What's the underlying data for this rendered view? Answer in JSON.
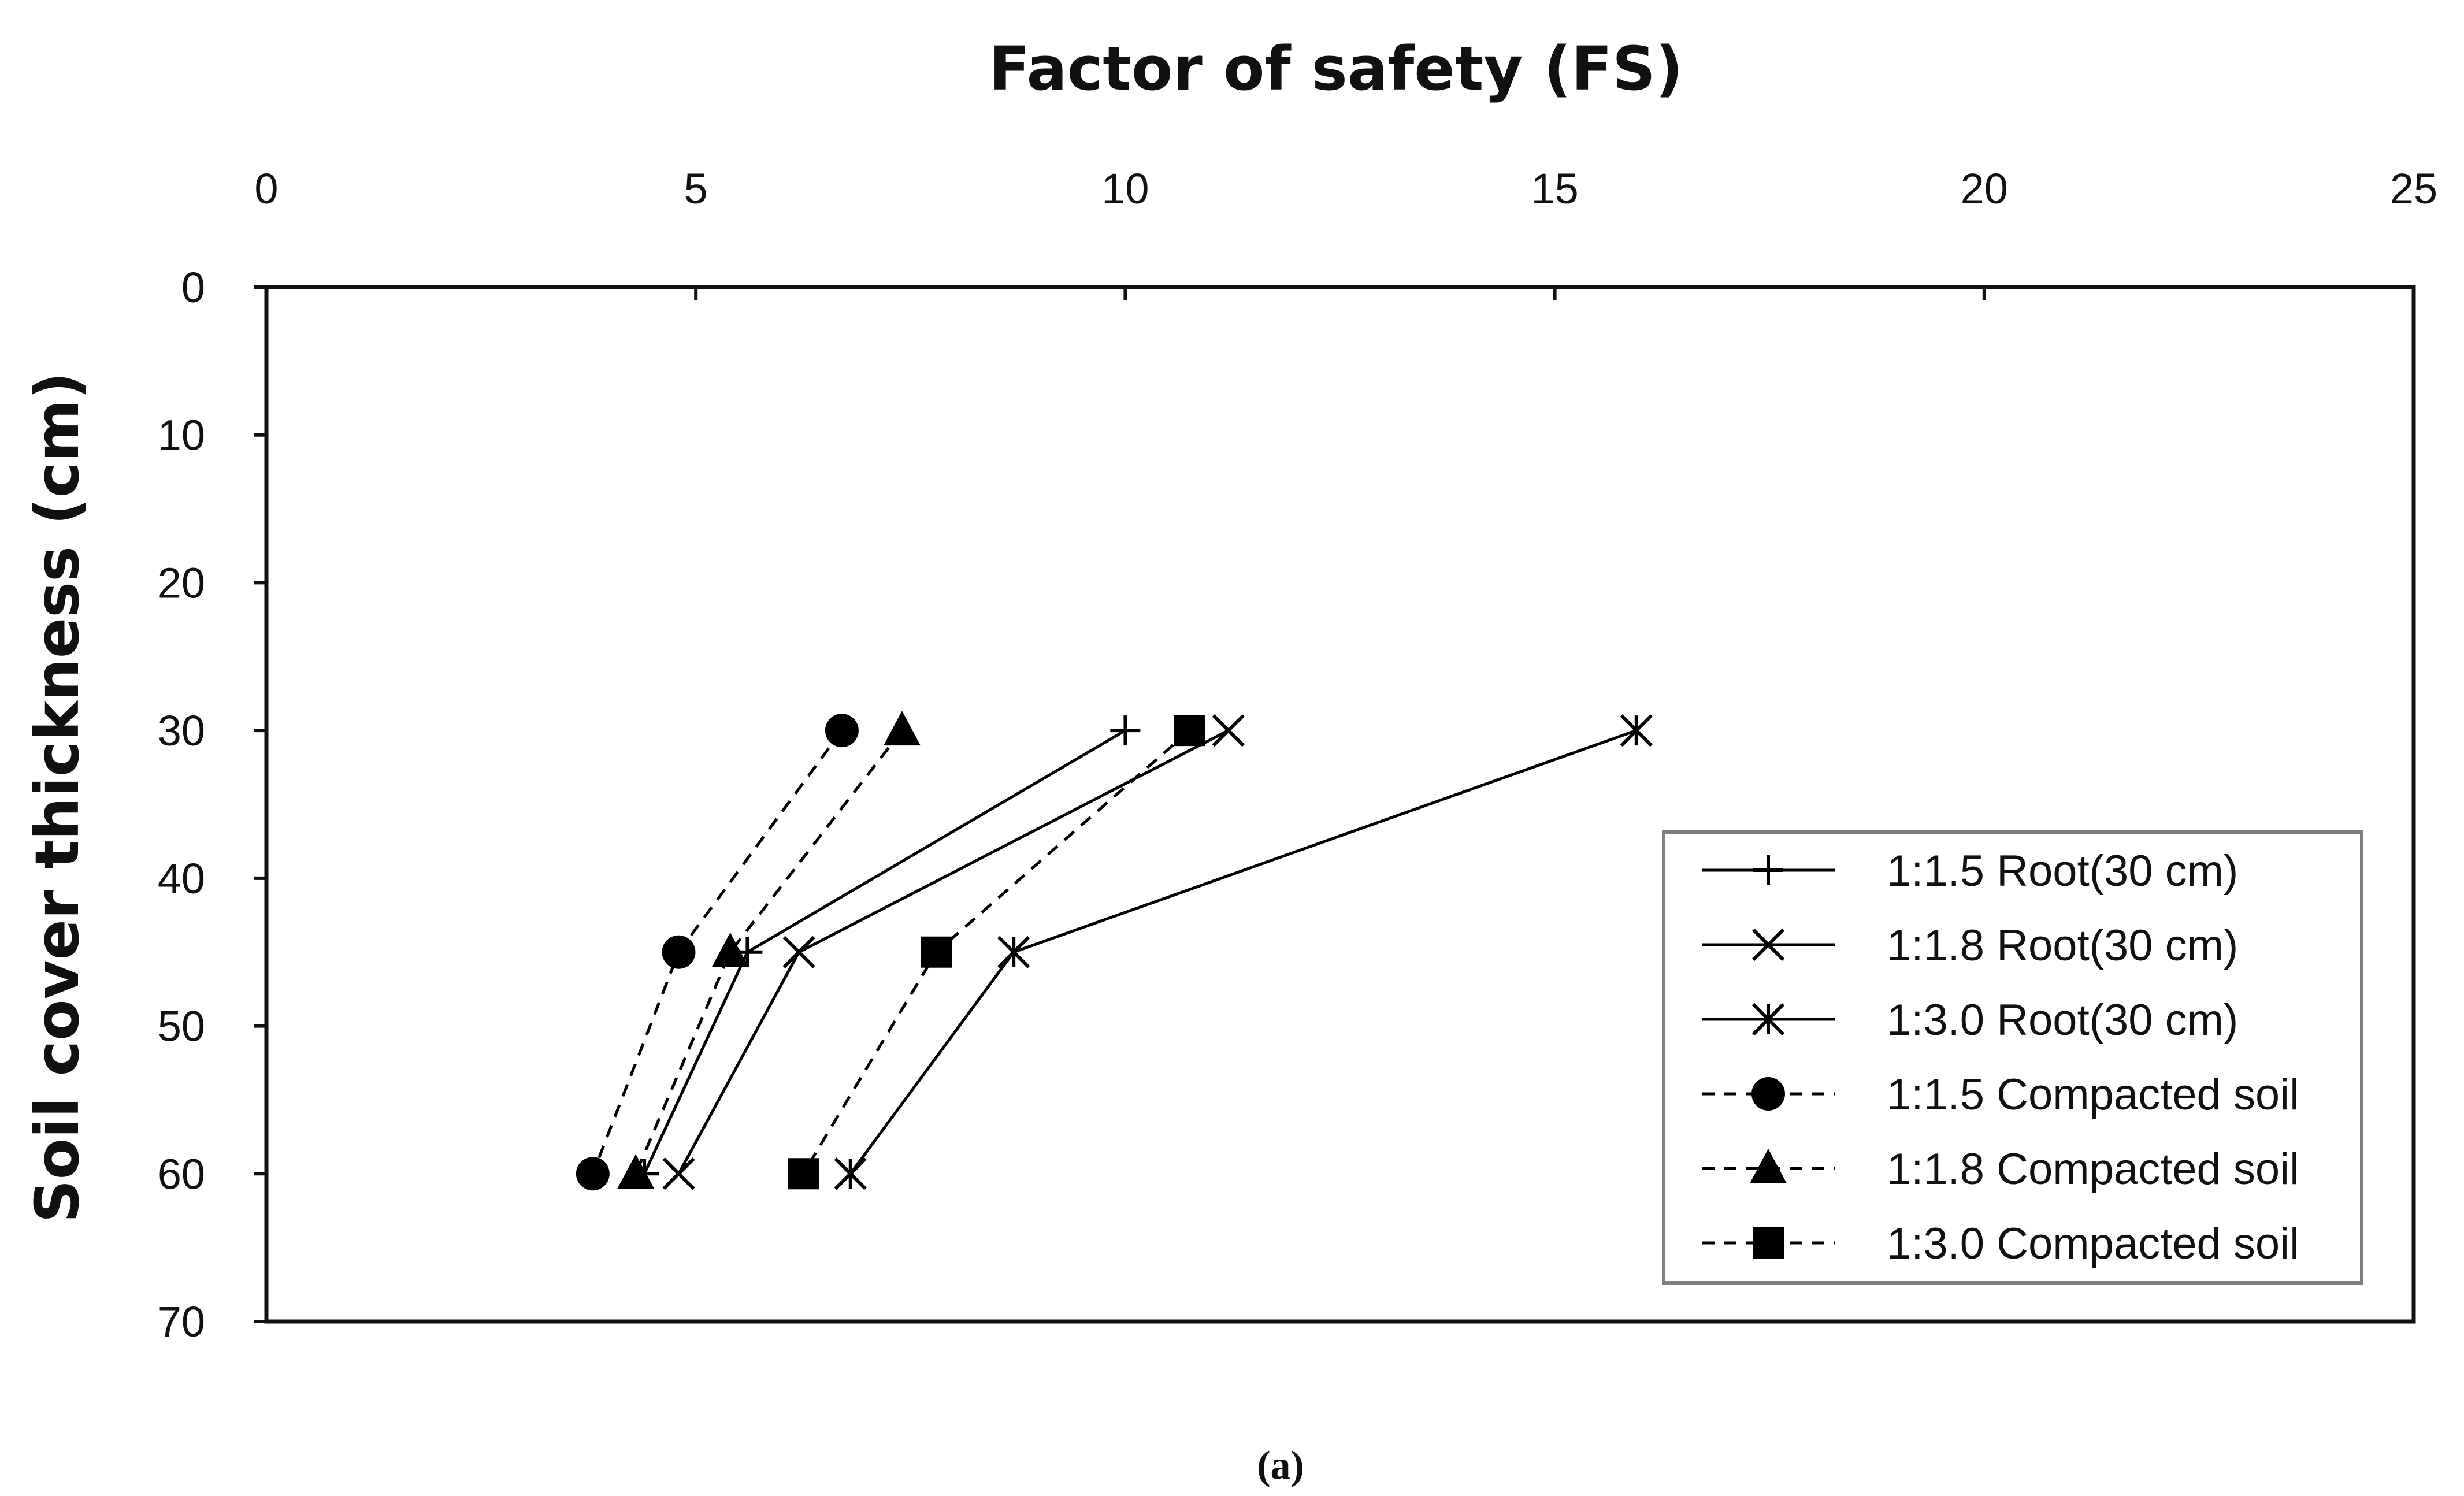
{
  "chart_data": {
    "type": "line",
    "title": "",
    "xlabel": "Factor of safety (FS)",
    "ylabel": "Soil cover thickness (cm)",
    "xlim": [
      0,
      25
    ],
    "ylim": [
      0,
      70
    ],
    "x_axis_position": "top",
    "y_axis_inverted": true,
    "x_ticks": [
      0,
      5,
      10,
      15,
      20,
      25
    ],
    "y_ticks": [
      0,
      10,
      20,
      30,
      40,
      50,
      60,
      70
    ],
    "x_tick_labels": [
      "0",
      "5",
      "10",
      "15",
      "20",
      "25"
    ],
    "y_tick_labels": [
      "0",
      "10",
      "20",
      "30",
      "40",
      "50",
      "60",
      "70"
    ],
    "grid": false,
    "legend_position": "right",
    "caption": "(a)",
    "series": [
      {
        "name": "1:1.5 Root(30 cm)",
        "line": "solid",
        "marker": "plus",
        "points": [
          {
            "fs": 10.0,
            "depth": 30
          },
          {
            "fs": 5.6,
            "depth": 45
          },
          {
            "fs": 4.4,
            "depth": 60
          }
        ]
      },
      {
        "name": "1:1.8 Root(30 cm)",
        "line": "solid",
        "marker": "x",
        "points": [
          {
            "fs": 11.2,
            "depth": 30
          },
          {
            "fs": 6.2,
            "depth": 45
          },
          {
            "fs": 4.8,
            "depth": 60
          }
        ]
      },
      {
        "name": "1:3.0 Root(30 cm)",
        "line": "solid",
        "marker": "asterisk",
        "points": [
          {
            "fs": 15.95,
            "depth": 30
          },
          {
            "fs": 8.7,
            "depth": 45
          },
          {
            "fs": 6.8,
            "depth": 60
          }
        ]
      },
      {
        "name": "1:1.5 Compacted soil",
        "line": "dashed",
        "marker": "circle",
        "points": [
          {
            "fs": 6.7,
            "depth": 30
          },
          {
            "fs": 4.8,
            "depth": 45
          },
          {
            "fs": 3.8,
            "depth": 60
          }
        ]
      },
      {
        "name": "1:1.8 Compacted soil",
        "line": "dashed",
        "marker": "triangle",
        "points": [
          {
            "fs": 7.4,
            "depth": 30
          },
          {
            "fs": 5.4,
            "depth": 45
          },
          {
            "fs": 4.3,
            "depth": 60
          }
        ]
      },
      {
        "name": "1:3.0 Compacted soil",
        "line": "dashed",
        "marker": "square",
        "points": [
          {
            "fs": 10.75,
            "depth": 30
          },
          {
            "fs": 7.8,
            "depth": 45
          },
          {
            "fs": 6.25,
            "depth": 60
          }
        ]
      }
    ]
  }
}
